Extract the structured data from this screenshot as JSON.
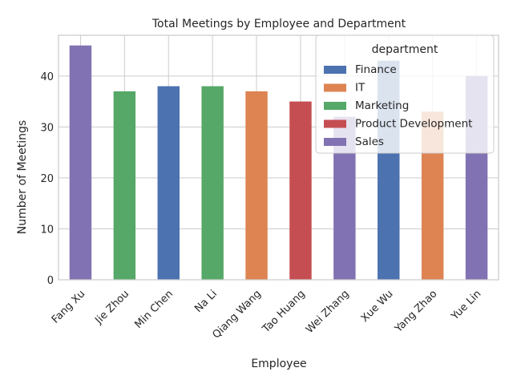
{
  "chart_data": {
    "type": "bar",
    "title": "Total Meetings by Employee and Department",
    "xlabel": "Employee",
    "ylabel": "Number of Meetings",
    "ylim": [
      0,
      48
    ],
    "yticks": [
      0,
      10,
      20,
      30,
      40
    ],
    "grid": true,
    "legend_position": "top-right",
    "categories": [
      "Fang Xu",
      "Jie Zhou",
      "Min Chen",
      "Na Li",
      "Qiang Wang",
      "Tao Huang",
      "Wei Zhang",
      "Xue Wu",
      "Yang Zhao",
      "Yue Lin"
    ],
    "legend": {
      "title": "department",
      "entries": [
        {
          "name": "Finance",
          "color": "#4c72b0"
        },
        {
          "name": "IT",
          "color": "#dd8452"
        },
        {
          "name": "Marketing",
          "color": "#55a868"
        },
        {
          "name": "Product Development",
          "color": "#c44e52"
        },
        {
          "name": "Sales",
          "color": "#8172b3"
        }
      ]
    },
    "series": [
      {
        "name": "Finance",
        "color": "#4c72b0",
        "values": [
          0,
          0,
          38,
          0,
          0,
          0,
          0,
          43,
          0,
          0
        ]
      },
      {
        "name": "IT",
        "color": "#dd8452",
        "values": [
          0,
          0,
          0,
          0,
          37,
          0,
          0,
          0,
          33,
          0
        ]
      },
      {
        "name": "Marketing",
        "color": "#55a868",
        "values": [
          0,
          37,
          0,
          38,
          0,
          0,
          0,
          0,
          0,
          0
        ]
      },
      {
        "name": "Product Development",
        "color": "#c44e52",
        "values": [
          0,
          0,
          0,
          0,
          0,
          35,
          0,
          0,
          0,
          0
        ]
      },
      {
        "name": "Sales",
        "color": "#8172b3",
        "values": [
          46,
          0,
          0,
          0,
          0,
          0,
          32,
          0,
          0,
          40
        ]
      }
    ]
  }
}
